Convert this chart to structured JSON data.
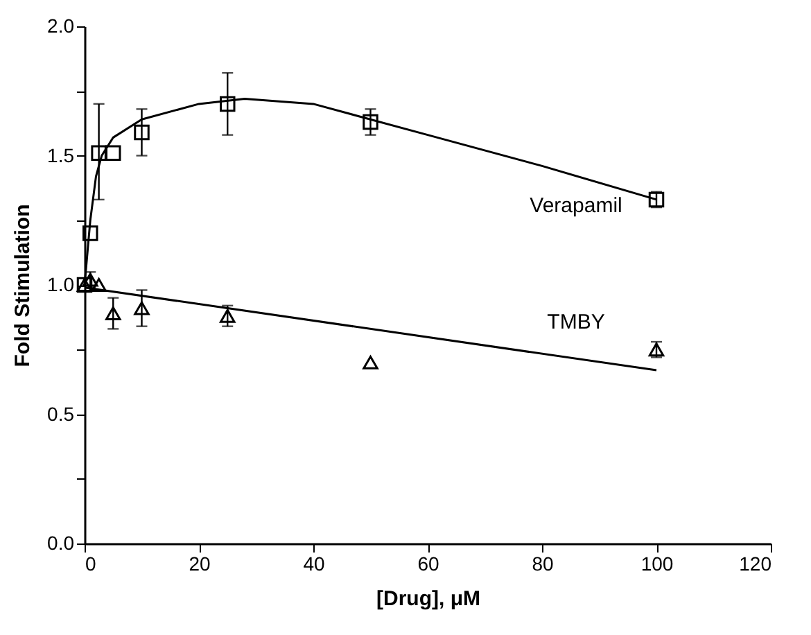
{
  "chart_data": {
    "type": "scatter",
    "xlabel": "[Drug],  μM",
    "ylabel": "Fold  Stimulation",
    "xlim": [
      0,
      120
    ],
    "xticks": [
      0,
      20,
      40,
      60,
      80,
      100,
      120
    ],
    "ylim": [
      0,
      2
    ],
    "yticks": [
      {
        "value": 0,
        "label": "0.0"
      },
      {
        "value": 0.25,
        "label": null
      },
      {
        "value": 0.5,
        "label": "0.5"
      },
      {
        "value": 0.75,
        "label": null
      },
      {
        "value": 1,
        "label": "1.0"
      },
      {
        "value": 1.25,
        "label": null
      },
      {
        "value": 1.5,
        "label": "1.5"
      },
      {
        "value": 1.75,
        "label": null
      },
      {
        "value": 2,
        "label": "2.0"
      }
    ],
    "series": [
      {
        "name": "Verapamil",
        "marker": "square",
        "color": "#000000",
        "x": [
          0,
          1,
          2.5,
          5,
          10,
          25,
          50,
          100
        ],
        "values": [
          1.0,
          1.2,
          1.51,
          1.51,
          1.59,
          1.7,
          1.63,
          1.33
        ],
        "errors": [
          null,
          null,
          [
            1.33,
            1.7
          ],
          null,
          0.09,
          0.12,
          0.05,
          0.03
        ]
      },
      {
        "name": "TMBY",
        "marker": "triangle",
        "color": "#000000",
        "x": [
          0,
          1,
          2.5,
          5,
          10,
          25,
          50,
          100
        ],
        "values": [
          1.0,
          1.02,
          1.0,
          0.89,
          0.91,
          0.88,
          0.7,
          0.75
        ],
        "errors": [
          null,
          0.03,
          null,
          0.06,
          0.07,
          0.04,
          null,
          0.03
        ]
      },
      {
        "type": "line",
        "color": "#000000",
        "x": [
          0,
          1,
          2,
          3,
          5,
          10,
          20,
          28,
          40,
          60,
          80,
          100
        ],
        "values": [
          1.0,
          1.25,
          1.42,
          1.5,
          1.57,
          1.64,
          1.7,
          1.72,
          1.7,
          1.58,
          1.46,
          1.33
        ]
      },
      {
        "type": "line",
        "color": "#000000",
        "x": [
          0,
          100
        ],
        "values": [
          0.99,
          0.67
        ]
      }
    ]
  }
}
